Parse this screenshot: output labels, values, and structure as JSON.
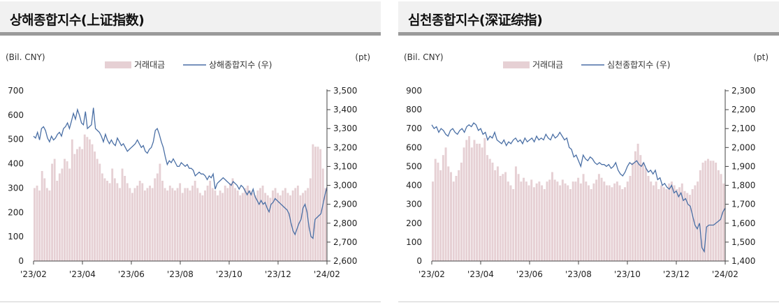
{
  "chart_data": [
    {
      "type": "bar+line",
      "title": "상해종합지수(上证指数)",
      "left_unit": "(Bil. CNY)",
      "right_unit": "(pt)",
      "legend": [
        {
          "label": "거래대금",
          "kind": "bar",
          "color": "#e6d0d4"
        },
        {
          "label": "상해종합지수 (우)",
          "kind": "line",
          "color": "#4a6fa5"
        }
      ],
      "x_ticks": [
        "'23/02",
        "'23/04",
        "'23/06",
        "'23/08",
        "'23/10",
        "'23/12",
        "'24/02"
      ],
      "y_left": {
        "min": 0,
        "max": 700,
        "ticks": [
          "0",
          "100",
          "200",
          "300",
          "400",
          "500",
          "600",
          "700"
        ]
      },
      "y_right": {
        "min": 2600,
        "max": 3500,
        "ticks": [
          "2,600",
          "2,700",
          "2,800",
          "2,900",
          "3,000",
          "3,100",
          "3,200",
          "3,300",
          "3,400",
          "3,500"
        ]
      },
      "bar_series": {
        "name": "거래대금",
        "values": [
          300,
          310,
          290,
          370,
          340,
          300,
          290,
          400,
          420,
          330,
          360,
          380,
          420,
          410,
          380,
          500,
          440,
          460,
          470,
          460,
          520,
          510,
          500,
          480,
          450,
          420,
          400,
          360,
          340,
          330,
          320,
          380,
          340,
          320,
          300,
          380,
          350,
          320,
          300,
          280,
          300,
          310,
          330,
          320,
          290,
          300,
          310,
          300,
          340,
          360,
          400,
          330,
          300,
          290,
          310,
          300,
          290,
          300,
          320,
          280,
          300,
          300,
          290,
          310,
          330,
          300,
          280,
          270,
          290,
          310,
          330,
          300,
          290,
          270,
          290,
          280,
          310,
          300,
          320,
          340,
          300,
          290,
          270,
          280,
          300,
          310,
          290,
          280,
          270,
          290,
          300,
          310,
          280,
          270,
          260,
          290,
          300,
          280,
          270,
          290,
          300,
          280,
          270,
          290,
          300,
          310,
          270,
          280,
          290,
          300,
          340,
          480,
          470,
          470,
          460,
          380,
          300
        ]
      },
      "line_series": {
        "name": "상해종합지수 (우)",
        "values": [
          3260,
          3250,
          3280,
          3240,
          3300,
          3310,
          3290,
          3250,
          3230,
          3260,
          3240,
          3250,
          3270,
          3280,
          3260,
          3300,
          3310,
          3330,
          3300,
          3340,
          3380,
          3350,
          3400,
          3370,
          3330,
          3320,
          3390,
          3300,
          3310,
          3320,
          3410,
          3300,
          3290,
          3280,
          3260,
          3230,
          3270,
          3240,
          3220,
          3240,
          3220,
          3210,
          3250,
          3230,
          3210,
          3220,
          3200,
          3180,
          3190,
          3200,
          3210,
          3220,
          3240,
          3220,
          3200,
          3210,
          3180,
          3170,
          3190,
          3200,
          3230,
          3290,
          3300,
          3270,
          3230,
          3200,
          3150,
          3110,
          3130,
          3120,
          3140,
          3120,
          3100,
          3100,
          3120,
          3110,
          3100,
          3110,
          3090,
          3090,
          3080,
          3050,
          3060,
          3070,
          3060,
          3060,
          3050,
          3030,
          3050,
          3040,
          3060,
          2980,
          3010,
          3020,
          3030,
          3040,
          3030,
          3020,
          3010,
          3000,
          3020,
          3010,
          3000,
          2980,
          3000,
          2990,
          2970,
          2950,
          2970,
          2950,
          2980,
          2940,
          2920,
          2900,
          2920,
          2900,
          2910,
          2880,
          2860,
          2900,
          2910,
          2930,
          2920,
          2910,
          2900,
          2890,
          2880,
          2870,
          2850,
          2800,
          2760,
          2740,
          2770,
          2800,
          2820,
          2880,
          2900,
          2860,
          2780,
          2730,
          2720,
          2820,
          2830,
          2840,
          2850,
          2900,
          2950,
          2990
        ]
      }
    },
    {
      "type": "bar+line",
      "title": "심천종합지수(深证综指)",
      "left_unit": "(Bil. CNY)",
      "right_unit": "(pt)",
      "legend": [
        {
          "label": "거래대금",
          "kind": "bar",
          "color": "#e6d0d4"
        },
        {
          "label": "심천종합지수 (우)",
          "kind": "line",
          "color": "#4a6fa5"
        }
      ],
      "x_ticks": [
        "'23/02",
        "'23/04",
        "'23/06",
        "'23/08",
        "'23/10",
        "'23/12",
        "'24/02"
      ],
      "y_left": {
        "min": 0,
        "max": 900,
        "ticks": [
          "0",
          "100",
          "200",
          "300",
          "400",
          "500",
          "600",
          "700",
          "800",
          "900"
        ]
      },
      "y_right": {
        "min": 1400,
        "max": 2300,
        "ticks": [
          "1,400",
          "1,500",
          "1,600",
          "1,700",
          "1,800",
          "1,900",
          "2,000",
          "2,100",
          "2,200",
          "2,300"
        ]
      },
      "bar_series": {
        "name": "거래대금",
        "values": [
          420,
          540,
          520,
          480,
          560,
          600,
          500,
          470,
          420,
          450,
          480,
          520,
          600,
          640,
          660,
          600,
          640,
          620,
          620,
          600,
          650,
          560,
          540,
          520,
          480,
          500,
          450,
          460,
          470,
          420,
          400,
          380,
          500,
          460,
          420,
          440,
          420,
          400,
          430,
          390,
          410,
          420,
          400,
          380,
          420,
          430,
          470,
          430,
          420,
          400,
          430,
          410,
          400,
          380,
          420,
          420,
          440,
          410,
          460,
          420,
          400,
          380,
          410,
          430,
          460,
          440,
          420,
          400,
          400,
          390,
          410,
          420,
          400,
          380,
          390,
          420,
          450,
          520,
          580,
          620,
          560,
          520,
          490,
          450,
          420,
          400,
          420,
          380,
          400,
          390,
          380,
          410,
          420,
          400,
          380,
          390,
          410,
          370,
          360,
          350,
          380,
          400,
          420,
          480,
          520,
          530,
          540,
          530,
          530,
          520,
          480,
          460,
          410
        ]
      },
      "line_series": {
        "name": "심천종합지수 (우)",
        "values": [
          2120,
          2100,
          2110,
          2080,
          2100,
          2090,
          2070,
          2060,
          2090,
          2100,
          2080,
          2070,
          2090,
          2100,
          2080,
          2110,
          2120,
          2110,
          2130,
          2120,
          2090,
          2100,
          2070,
          2080,
          2040,
          2060,
          2050,
          2080,
          2040,
          2030,
          2020,
          2040,
          2010,
          2030,
          2020,
          2040,
          2050,
          2030,
          2040,
          2020,
          2050,
          2030,
          2040,
          2050,
          2030,
          2060,
          2040,
          2050,
          2040,
          2070,
          2050,
          2040,
          2070,
          2050,
          2060,
          2080,
          2060,
          2040,
          2050,
          2000,
          1990,
          1950,
          1960,
          1930,
          1900,
          1960,
          1940,
          1930,
          1950,
          1940,
          1920,
          1910,
          1920,
          1910,
          1910,
          1900,
          1910,
          1890,
          1900,
          1920,
          1880,
          1860,
          1850,
          1870,
          1900,
          1920,
          1910,
          1920,
          1930,
          1910,
          1900,
          1920,
          1890,
          1870,
          1880,
          1860,
          1880,
          1830,
          1840,
          1800,
          1810,
          1790,
          1780,
          1800,
          1760,
          1770,
          1740,
          1760,
          1720,
          1730,
          1700,
          1690,
          1640,
          1590,
          1570,
          1600,
          1470,
          1450,
          1580,
          1590,
          1590,
          1590,
          1600,
          1610,
          1620,
          1660,
          1680
        ]
      }
    }
  ]
}
